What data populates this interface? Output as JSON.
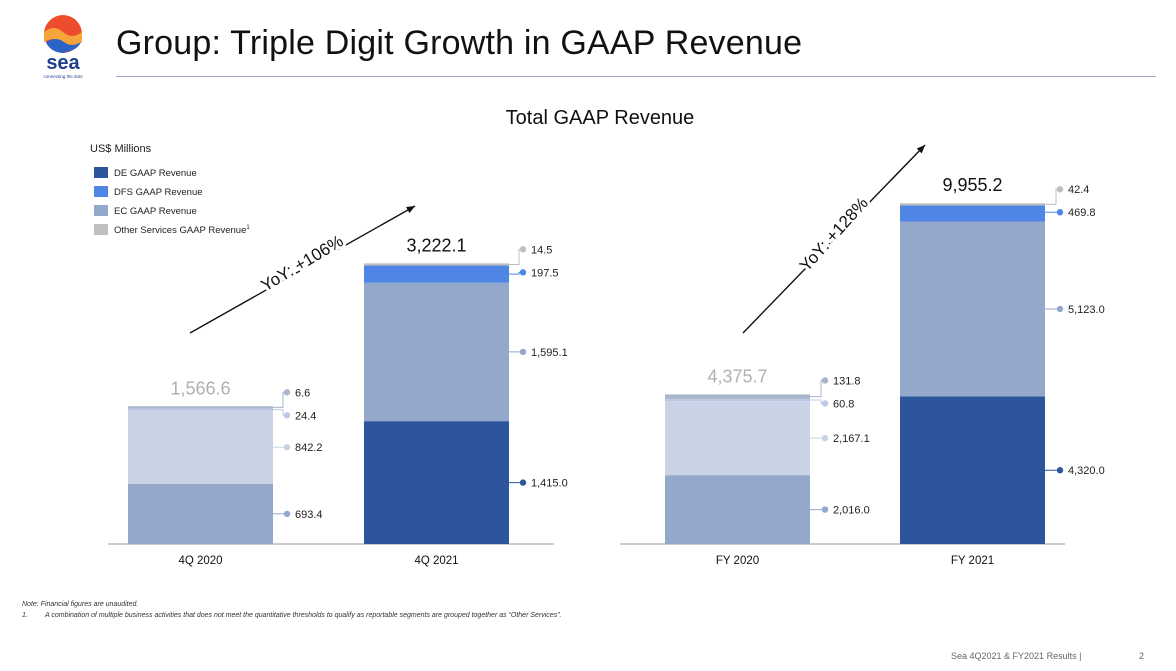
{
  "header": {
    "title": "Group: Triple Digit Growth in GAAP Revenue",
    "logo_text": "sea",
    "logo_tagline": "connecting the dots"
  },
  "chart_data": {
    "type": "bar",
    "stacked": true,
    "title": "Total GAAP Revenue",
    "unit_label": "US$ Millions",
    "legend": [
      {
        "name": "DE GAAP Revenue",
        "color": "#2c559e"
      },
      {
        "name": "DFS GAAP Revenue",
        "color": "#4f86e6"
      },
      {
        "name": "EC GAAP Revenue",
        "color": "#94a8cc"
      },
      {
        "name": "Other Services GAAP Revenue",
        "superscript": "1",
        "color": "#bfbfbf"
      }
    ],
    "groups": [
      {
        "growth_label": "YoY: +106%",
        "bars": [
          {
            "category": "4Q 2020",
            "total": "1,566.6",
            "faded": true,
            "segments": [
              {
                "series": "DE GAAP Revenue",
                "value": 0,
                "label": ""
              },
              {
                "series": "EC GAAP Revenue",
                "value": 693.4,
                "label": "693.4"
              },
              {
                "series": "DFS GAAP Revenue",
                "value": 842.2,
                "label": "842.2"
              },
              {
                "series": "Other Services GAAP Revenue",
                "value": 24.4,
                "label": "24.4"
              },
              {
                "series": "Other Services GAAP Revenue",
                "value": 6.6,
                "label": "6.6"
              }
            ]
          },
          {
            "category": "4Q 2021",
            "total": "3,222.1",
            "faded": false,
            "segments": [
              {
                "series": "DE GAAP Revenue",
                "value": 1415.0,
                "label": "1,415.0"
              },
              {
                "series": "EC GAAP Revenue",
                "value": 1595.1,
                "label": "1,595.1"
              },
              {
                "series": "DFS GAAP Revenue",
                "value": 197.5,
                "label": "197.5"
              },
              {
                "series": "Other Services GAAP Revenue",
                "value": 14.5,
                "label": "14.5"
              }
            ]
          }
        ]
      },
      {
        "growth_label": "YoY: +128%",
        "bars": [
          {
            "category": "FY 2020",
            "total": "4,375.7",
            "faded": true,
            "segments": [
              {
                "series": "DE GAAP Revenue",
                "value": 0,
                "label": ""
              },
              {
                "series": "EC GAAP Revenue",
                "value": 2016.0,
                "label": "2,016.0"
              },
              {
                "series": "DFS GAAP Revenue",
                "value": 2167.1,
                "label": "2,167.1"
              },
              {
                "series": "Other Services GAAP Revenue",
                "value": 60.8,
                "label": "60.8"
              },
              {
                "series": "Other Services GAAP Revenue",
                "value": 131.8,
                "label": "131.8"
              }
            ]
          },
          {
            "category": "FY 2021",
            "total": "9,955.2",
            "faded": false,
            "segments": [
              {
                "series": "DE GAAP Revenue",
                "value": 4320.0,
                "label": "4,320.0"
              },
              {
                "series": "EC GAAP Revenue",
                "value": 5123.0,
                "label": "5,123.0"
              },
              {
                "series": "DFS GAAP Revenue",
                "value": 469.8,
                "label": "469.8"
              },
              {
                "series": "Other Services GAAP Revenue",
                "value": 42.4,
                "label": "42.4"
              }
            ]
          }
        ]
      }
    ]
  },
  "notes": {
    "note": "Note: Financial figures are unaudited.",
    "footnote_number": "1.",
    "footnote": "A combination of multiple business activities that does not meet the quantitative thresholds to qualify as reportable segments are grouped together as “Other Services”."
  },
  "footer": {
    "text": "Sea 4Q2021 & FY2021 Results |",
    "page": "2"
  }
}
